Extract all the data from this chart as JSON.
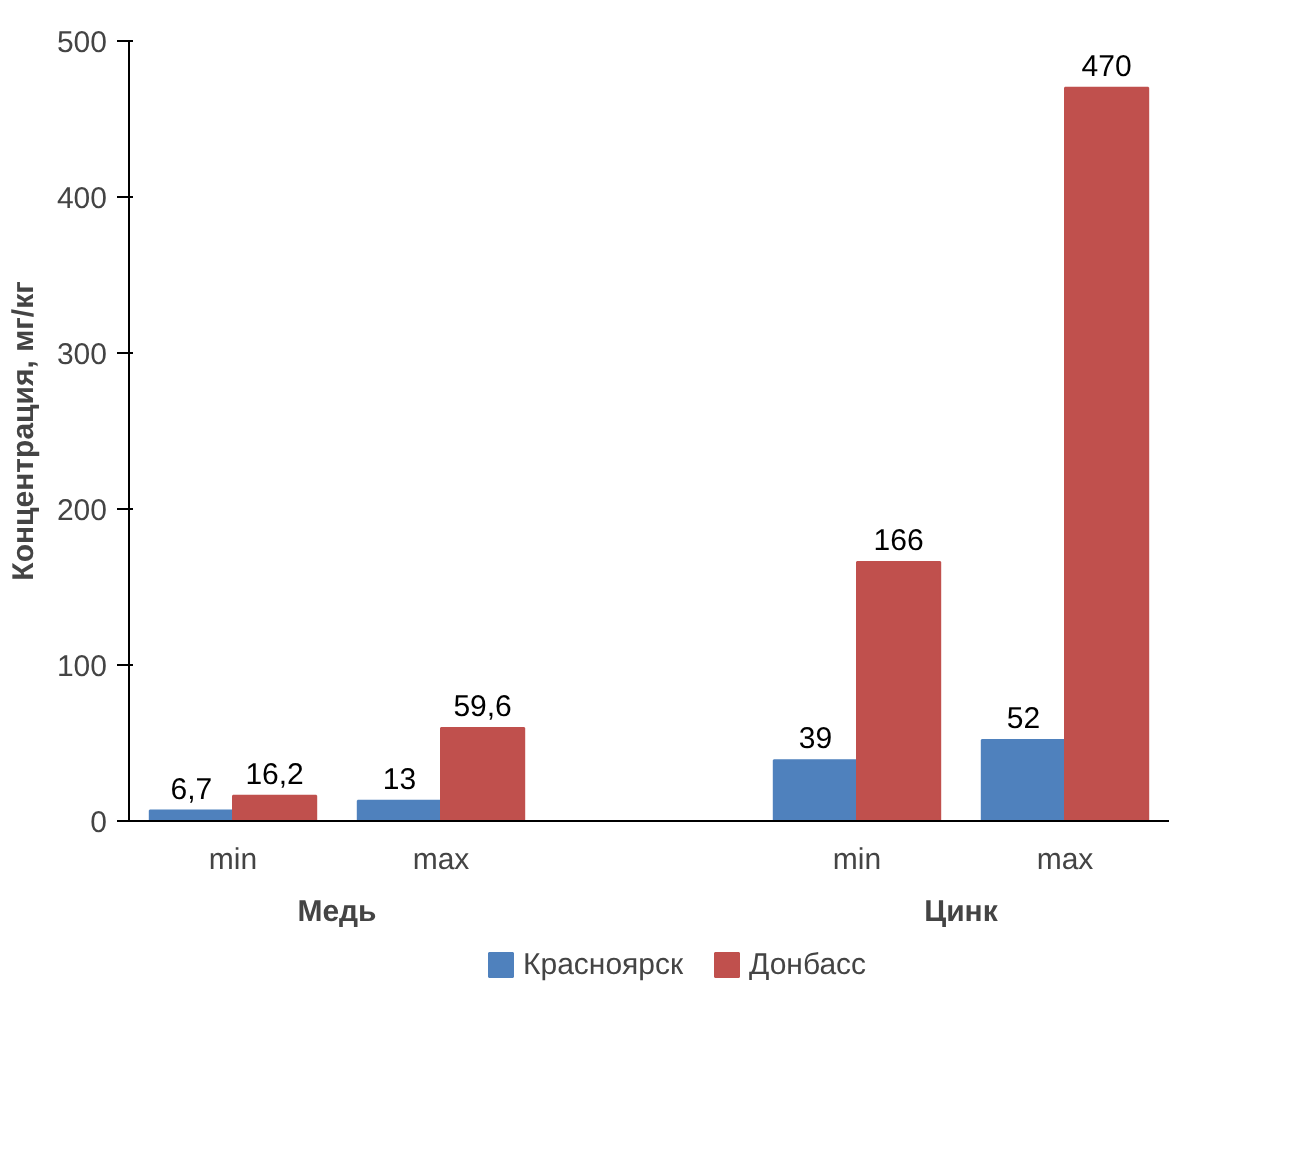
{
  "chart_data": {
    "type": "bar",
    "ylabel": "Концентрация, мг/кг",
    "categories": [
      "min",
      "max",
      null,
      "min",
      "max"
    ],
    "series": [
      {
        "name": "Красноярск",
        "color": "#4f81bd",
        "values": [
          6.7,
          13,
          null,
          39,
          52
        ],
        "value_labels": [
          "6,7",
          "13",
          null,
          "39",
          "52"
        ]
      },
      {
        "name": "Донбасс",
        "color": "#c0504d",
        "values": [
          16.2,
          59.6,
          null,
          166,
          470
        ],
        "value_labels": [
          "16,2",
          "59,6",
          null,
          "166",
          "470"
        ]
      }
    ],
    "ylim": [
      0,
      500
    ],
    "yticks": [
      0,
      100,
      200,
      300,
      400,
      500
    ],
    "grid": false,
    "legend": "bottom",
    "annotations": [
      "Медь",
      "Цинк"
    ]
  }
}
